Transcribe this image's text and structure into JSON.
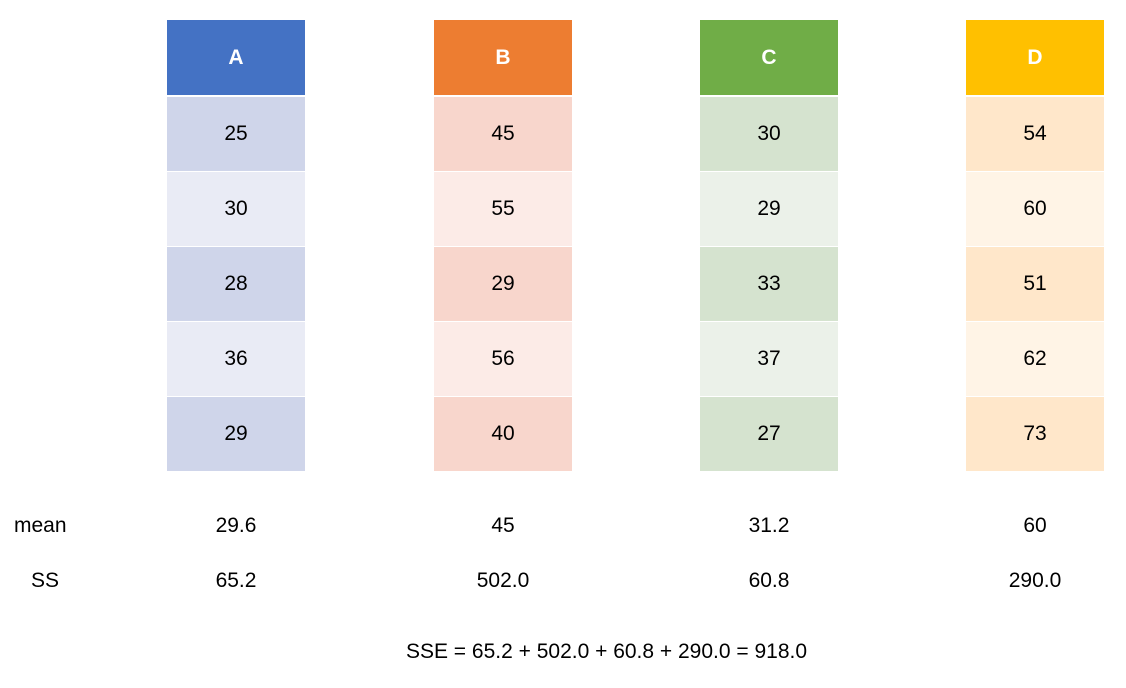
{
  "groups": [
    {
      "name": "A",
      "header_color": "#4472C4",
      "dark_color": "#CFD5EA",
      "light_color": "#E9EBF5",
      "values": [
        "25",
        "30",
        "28",
        "36",
        "29"
      ],
      "mean": "29.6",
      "ss": "65.2"
    },
    {
      "name": "B",
      "header_color": "#ED7D31",
      "dark_color": "#F8D6CC",
      "light_color": "#FCEBE7",
      "values": [
        "45",
        "55",
        "29",
        "56",
        "40"
      ],
      "mean": "45",
      "ss": "502.0"
    },
    {
      "name": "C",
      "header_color": "#70AD47",
      "dark_color": "#D5E3CF",
      "light_color": "#EBF1E9",
      "values": [
        "30",
        "29",
        "33",
        "37",
        "27"
      ],
      "mean": "31.2",
      "ss": "60.8"
    },
    {
      "name": "D",
      "header_color": "#FFC000",
      "dark_color": "#FFE7CA",
      "light_color": "#FFF4E6",
      "values": [
        "54",
        "60",
        "51",
        "62",
        "73"
      ],
      "mean": "60",
      "ss": "290.0"
    }
  ],
  "row_labels": {
    "mean": "mean",
    "ss": "SS"
  },
  "formula": "SSE = 65.2 + 502.0 + 60.8 + 290.0 = 918.0"
}
